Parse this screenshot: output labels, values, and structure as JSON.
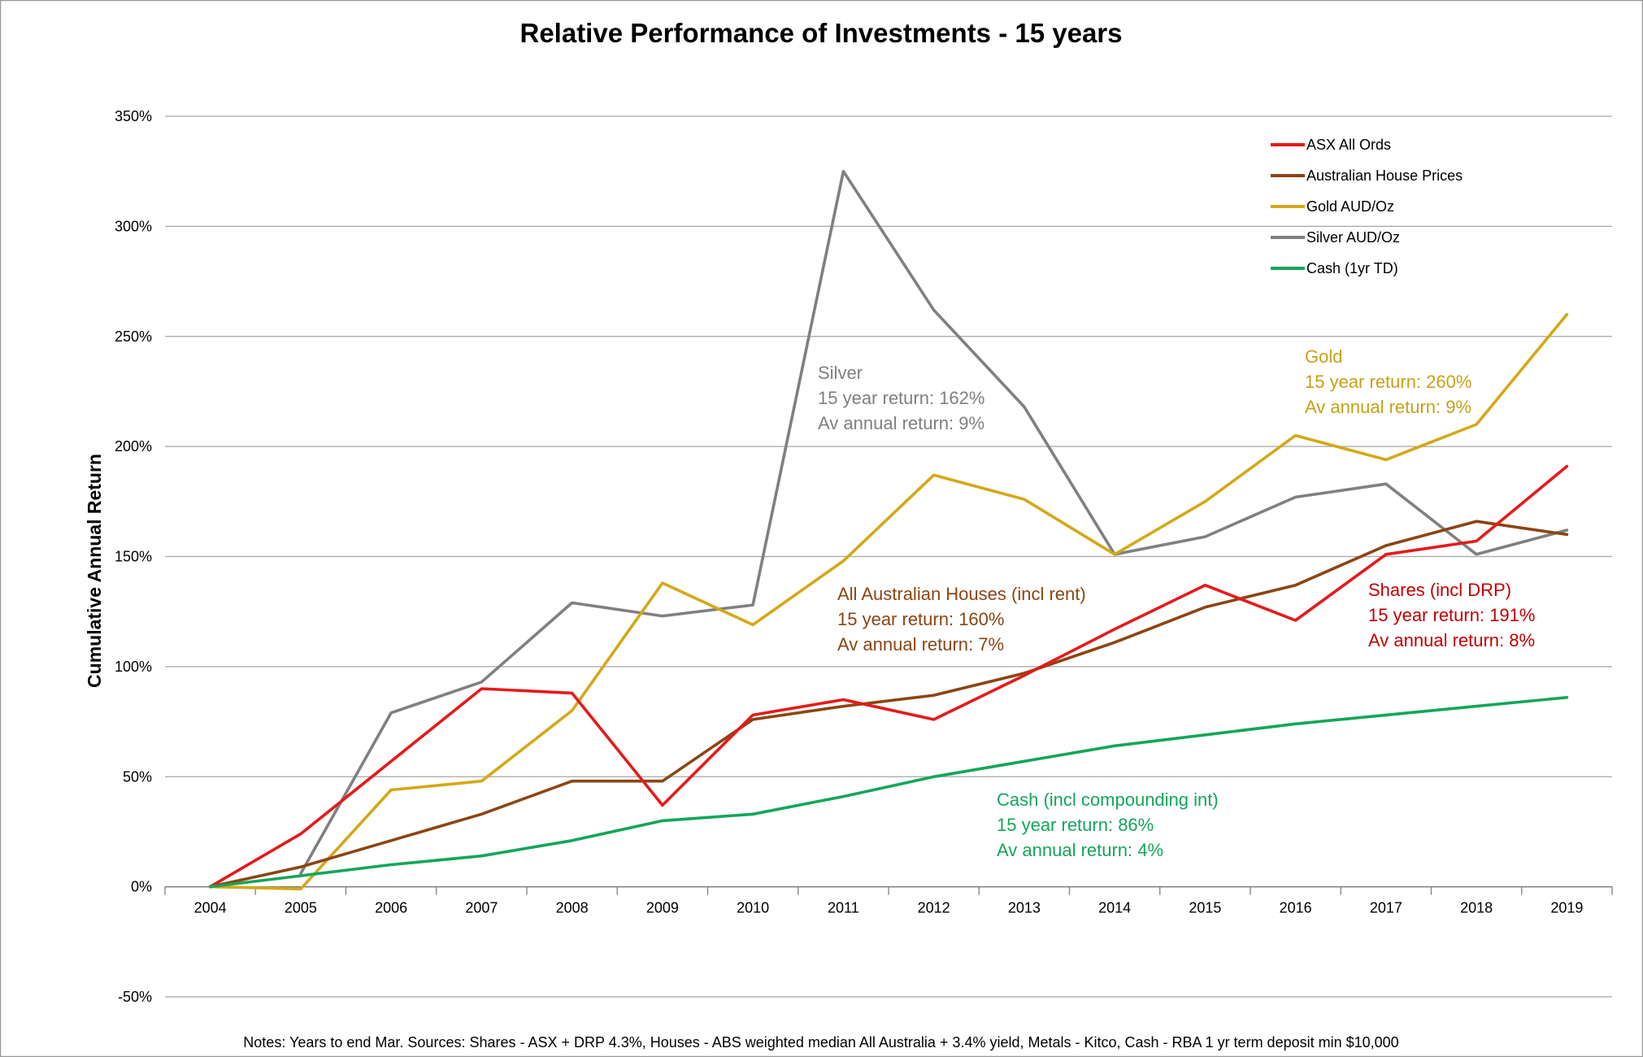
{
  "chart_data": {
    "type": "line",
    "title": "Relative Performance of Investments - 15 years",
    "xlabel": "",
    "ylabel": "Cumulative Annual Return",
    "x": [
      "2004",
      "2005",
      "2006",
      "2007",
      "2008",
      "2009",
      "2010",
      "2011",
      "2012",
      "2013",
      "2014",
      "2015",
      "2016",
      "2017",
      "2018",
      "2019"
    ],
    "ylim": [
      -50,
      350
    ],
    "yticks": [
      -50,
      0,
      50,
      100,
      150,
      200,
      250,
      300,
      350
    ],
    "ytick_labels": [
      "-50%",
      "0%",
      "50%",
      "100%",
      "150%",
      "200%",
      "250%",
      "300%",
      "350%"
    ],
    "grid": "horizontal",
    "legend_position": "top-right",
    "series": [
      {
        "name": "ASX All Ords",
        "color": "#e41a1c",
        "values": [
          0,
          24,
          57,
          90,
          88,
          37,
          78,
          85,
          76,
          96,
          117,
          137,
          121,
          151,
          157,
          191
        ]
      },
      {
        "name": "Australian House Prices",
        "color": "#8b4513",
        "values": [
          0,
          9,
          21,
          33,
          48,
          48,
          76,
          82,
          87,
          97,
          111,
          127,
          137,
          155,
          166,
          160
        ]
      },
      {
        "name": "Gold AUD/Oz",
        "color": "#d4a817",
        "values": [
          0,
          -1,
          44,
          48,
          80,
          138,
          119,
          148,
          187,
          176,
          151,
          175,
          205,
          194,
          210,
          260
        ]
      },
      {
        "name": "Silver AUD/Oz",
        "color": "#808080",
        "values": [
          null,
          6,
          79,
          93,
          129,
          123,
          128,
          325,
          262,
          218,
          151,
          159,
          177,
          183,
          151,
          162
        ]
      },
      {
        "name": "Cash (1yr TD)",
        "color": "#13a65a",
        "values": [
          0,
          5,
          10,
          14,
          21,
          30,
          33,
          41,
          50,
          57,
          64,
          69,
          74,
          78,
          82,
          86
        ]
      }
    ],
    "annotations": [
      {
        "series": "Silver AUD/Oz",
        "color": "#808080",
        "lines": [
          "Silver",
          "15 year return: 162%",
          "Av annual return: 9%"
        ]
      },
      {
        "series": "Gold AUD/Oz",
        "color": "#c8a015",
        "lines": [
          "Gold",
          "15 year return: 260%",
          "Av annual return: 9%"
        ]
      },
      {
        "series": "Australian House Prices",
        "color": "#8b4513",
        "lines": [
          "All Australian Houses (incl rent)",
          "15 year return: 160%",
          "Av annual return: 7%"
        ]
      },
      {
        "series": "ASX All Ords",
        "color": "#c00000",
        "lines": [
          "Shares (incl DRP)",
          "15 year return:  191%",
          "Av annual return: 8%"
        ]
      },
      {
        "series": "Cash (1yr TD)",
        "color": "#13a65a",
        "lines": [
          "Cash (incl compounding int)",
          "15 year return: 86%",
          "Av annual return: 4%"
        ]
      }
    ],
    "note": "Notes: Years to  end Mar.  Sources: Shares - ASX + DRP 4.3%, Houses - ABS weighted median All Australia + 3.4% yield, Metals -  Kitco, Cash - RBA 1 yr term deposit min $10,000"
  }
}
